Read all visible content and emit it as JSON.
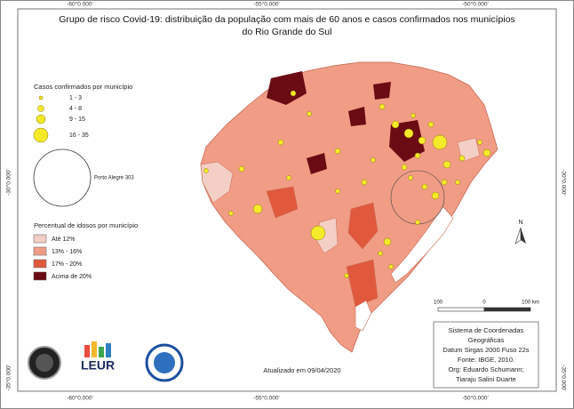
{
  "map": {
    "title": [
      "Grupo de risco Covid-19: distribuição da população com mais de 60 anos e casos confirmados nos municípios",
      "do Rio Grande do Sul"
    ],
    "coords": {
      "top": [
        "-60°0.000'",
        "-55°0.000'",
        "-50°0.000'"
      ],
      "bottom": [
        "-60°0.000'",
        "-55°0.000'",
        "-50°0.000'"
      ],
      "left": [
        "-30°0.000'",
        "-35°0.000'"
      ],
      "right": [
        "-30°0.000'",
        "-35°0.000'"
      ]
    },
    "cases_legend": {
      "title": "Casos confirmados por município",
      "items": [
        "1 - 3",
        "4 - 8",
        "9 - 15",
        "16 - 35"
      ],
      "capital": "Porto Alegre 303"
    },
    "elderly_legend": {
      "title": "Percentual de idosos por município",
      "items": [
        "Até 12%",
        "13% - 16%",
        "17% - 20%",
        "Acima de 20%"
      ]
    },
    "scale": [
      "100",
      "0",
      "100 km"
    ],
    "north": "N",
    "info": [
      "Sistema de Coordenadas",
      "Geográficas",
      "Datum Sirgas 2000 Fuso 22s",
      "Fonte: IBGE, 2010.",
      "Org: Eduardo Schumann;",
      "Tiaraju Salini Duarte"
    ],
    "updated": "Atualizado em 09/04/2020",
    "logo": "LEUR"
  }
}
